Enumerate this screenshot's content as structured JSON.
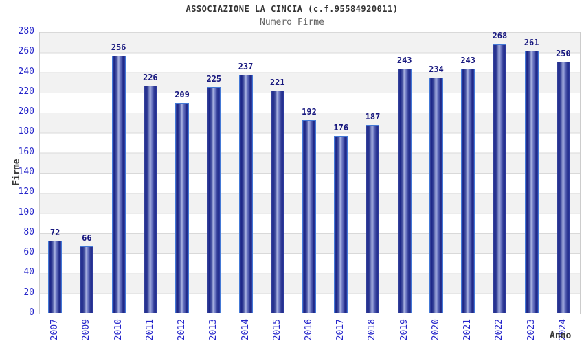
{
  "header": {
    "title": "ASSOCIAZIONE LA CINCIA (c.f.95584920011)",
    "subtitle": "Numero Firme"
  },
  "chart_data": {
    "type": "bar",
    "title": "ASSOCIAZIONE LA CINCIA (c.f.95584920011)",
    "subtitle": "Numero Firme",
    "categories": [
      "2007",
      "2009",
      "2010",
      "2011",
      "2012",
      "2013",
      "2014",
      "2015",
      "2016",
      "2017",
      "2018",
      "2019",
      "2020",
      "2021",
      "2022",
      "2023",
      "2024"
    ],
    "values": [
      72,
      66,
      256,
      226,
      209,
      225,
      237,
      221,
      192,
      176,
      187,
      243,
      234,
      243,
      268,
      261,
      250
    ],
    "xlabel": "Anno",
    "ylabel": "Firme",
    "ylim": [
      0,
      280
    ],
    "ytick_step": 20,
    "grid": "horizontal-bands",
    "legend": "none",
    "colors": {
      "bar_border": "#4479d6",
      "bar_dark": "#1a2487",
      "bar_highlight": "#aab3e2",
      "value_label": "#17177e",
      "tick_label": "#2626cb",
      "band_gray": "#f2f2f2",
      "gridline": "#d9d9d9",
      "plot_border": "#cccccc",
      "title": "#333333",
      "subtitle": "#666666",
      "axis_title": "#3a3a3a"
    }
  }
}
